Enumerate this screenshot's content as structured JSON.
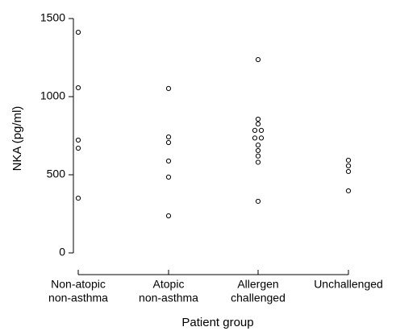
{
  "chart_data": {
    "type": "strip",
    "x_label": "Patient group",
    "y_label": "NKA (pg/ml)",
    "categories": [
      [
        "Non-atopic",
        "non-asthma"
      ],
      [
        "Atopic",
        "non-asthma"
      ],
      [
        "Allergen",
        "challenged"
      ],
      [
        "Unchallenged"
      ]
    ],
    "values": [
      [
        1412,
        1057,
        722,
        670,
        350
      ],
      [
        1052,
        742,
        706,
        588,
        485,
        237
      ],
      [
        1237,
        856,
        825,
        784,
        784,
        735,
        735,
        690,
        655,
        620,
        580,
        330
      ],
      [
        593,
        557,
        521,
        397
      ]
    ],
    "color": "#000000",
    "ylim": [
      0,
      1500
    ],
    "yticks": [
      0,
      500,
      1000,
      1500
    ]
  }
}
